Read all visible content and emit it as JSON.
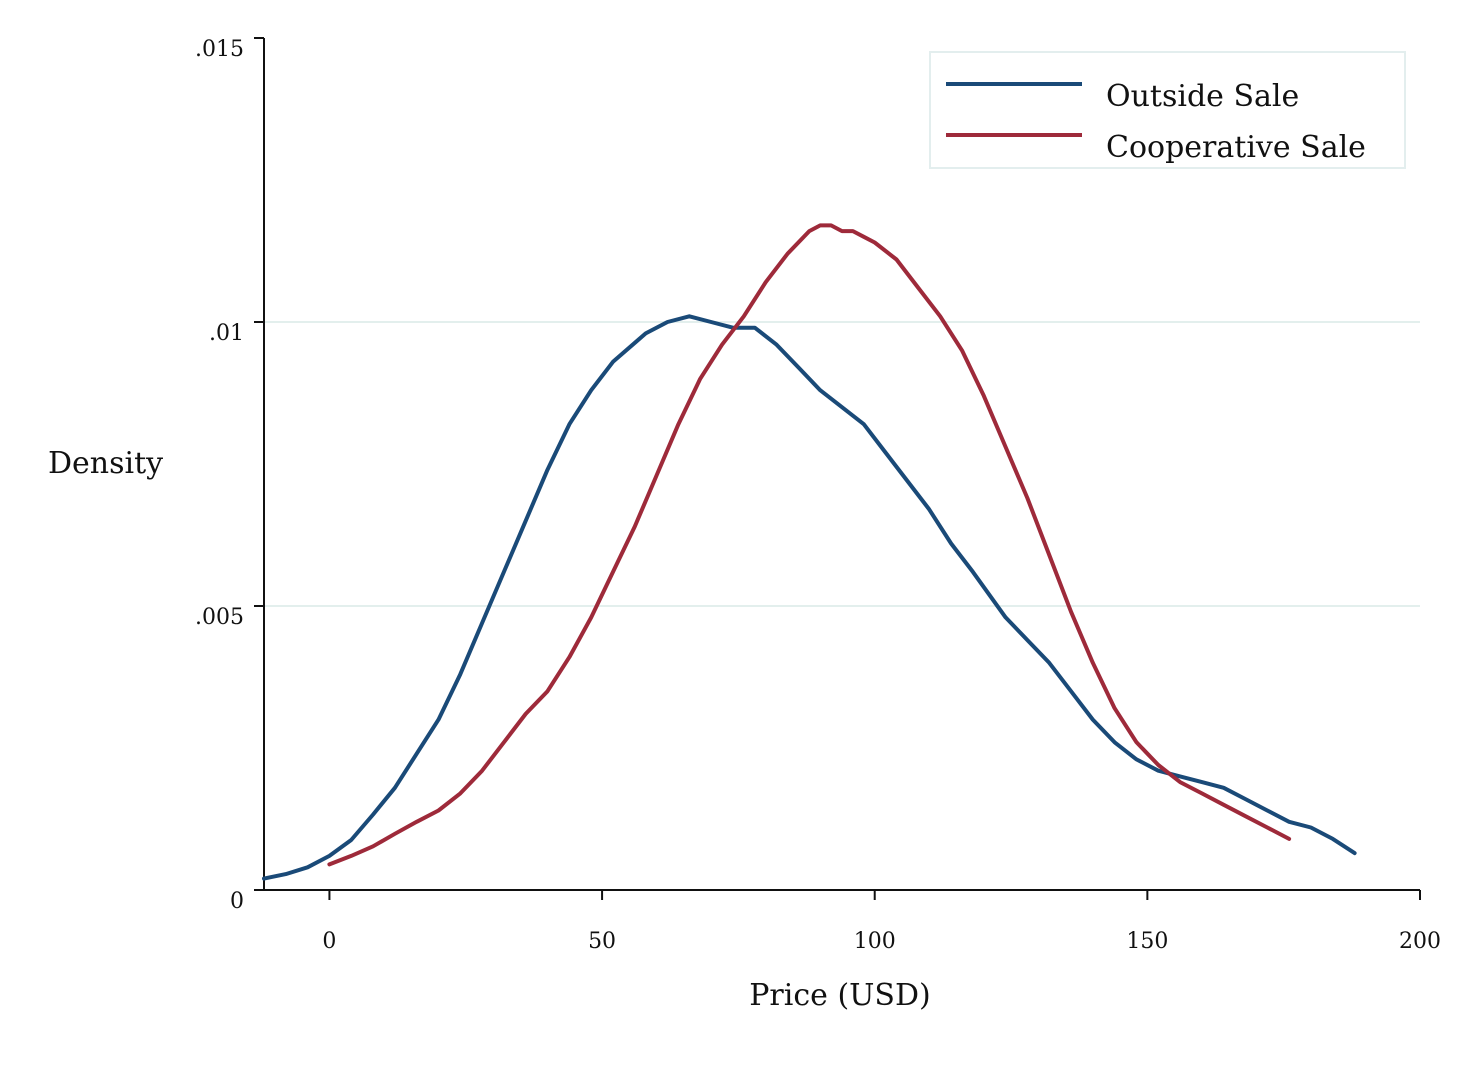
{
  "chart_data": {
    "type": "line",
    "xlabel": "Price (USD)",
    "ylabel": "Density",
    "xlim": [
      -12,
      200
    ],
    "ylim": [
      0,
      0.015
    ],
    "x_ticks": [
      0,
      50,
      100,
      150,
      200
    ],
    "x_tick_labels": [
      "0",
      "50",
      "100",
      "150",
      "200"
    ],
    "y_ticks": [
      0,
      0.005,
      0.01,
      0.015
    ],
    "y_tick_labels": [
      "0",
      ".005",
      ".01",
      ".015"
    ],
    "grid": "horizontal",
    "legend_position": "top-right",
    "series": [
      {
        "name": "Outside Sale",
        "color": "#1a4a78",
        "x": [
          -12,
          -8,
          -4,
          0,
          4,
          8,
          12,
          16,
          20,
          24,
          28,
          32,
          36,
          40,
          44,
          48,
          52,
          58,
          62,
          66,
          70,
          74,
          78,
          82,
          86,
          90,
          94,
          98,
          102,
          106,
          110,
          114,
          118,
          124,
          128,
          132,
          136,
          140,
          144,
          148,
          152,
          156,
          160,
          164,
          168,
          172,
          176,
          180,
          184,
          188
        ],
        "y": [
          0.0002,
          0.00028,
          0.0004,
          0.0006,
          0.00088,
          0.00133,
          0.0018,
          0.0024,
          0.003,
          0.0038,
          0.0047,
          0.0056,
          0.0065,
          0.0074,
          0.0082,
          0.0088,
          0.0093,
          0.0098,
          0.01,
          0.0101,
          0.01,
          0.0099,
          0.0099,
          0.0096,
          0.0092,
          0.0088,
          0.0085,
          0.0082,
          0.0077,
          0.0072,
          0.0067,
          0.0061,
          0.0056,
          0.0048,
          0.0044,
          0.004,
          0.0035,
          0.003,
          0.0026,
          0.0023,
          0.0021,
          0.002,
          0.0019,
          0.0018,
          0.0016,
          0.0014,
          0.0012,
          0.0011,
          0.0009,
          0.00065
        ]
      },
      {
        "name": "Cooperative Sale",
        "color": "#9e2a3a",
        "x": [
          0,
          4,
          8,
          12,
          16,
          20,
          24,
          28,
          32,
          36,
          40,
          44,
          48,
          52,
          56,
          60,
          64,
          68,
          72,
          76,
          80,
          84,
          88,
          90,
          92,
          94,
          96,
          98,
          100,
          104,
          108,
          112,
          116,
          120,
          124,
          128,
          132,
          136,
          140,
          144,
          148,
          152,
          156,
          160,
          164,
          168,
          172,
          176
        ],
        "y": [
          0.00045,
          0.0006,
          0.00077,
          0.00099,
          0.0012,
          0.0014,
          0.0017,
          0.0021,
          0.0026,
          0.0031,
          0.0035,
          0.0041,
          0.0048,
          0.0056,
          0.0064,
          0.0073,
          0.0082,
          0.009,
          0.0096,
          0.0101,
          0.0107,
          0.0112,
          0.0116,
          0.0117,
          0.0117,
          0.0116,
          0.0116,
          0.0115,
          0.0114,
          0.0111,
          0.0106,
          0.0101,
          0.0095,
          0.0087,
          0.0078,
          0.0069,
          0.0059,
          0.0049,
          0.004,
          0.0032,
          0.0026,
          0.0022,
          0.0019,
          0.0017,
          0.0015,
          0.0013,
          0.0011,
          0.0009
        ]
      }
    ]
  }
}
